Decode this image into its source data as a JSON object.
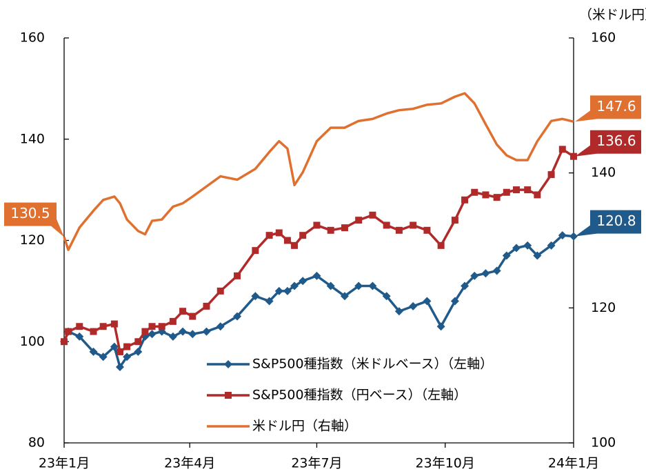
{
  "chart_data": {
    "type": "line",
    "y2_label": "（米ドル円）",
    "x": [
      0,
      3,
      11,
      21,
      28,
      36,
      40,
      45,
      53,
      58,
      63,
      70,
      78,
      85,
      92,
      102,
      112,
      124,
      137,
      147,
      154,
      160,
      165,
      171,
      181,
      191,
      201,
      211,
      221,
      231,
      240,
      250,
      260,
      270,
      280,
      287,
      294,
      302,
      310,
      317,
      324,
      332,
      339,
      349,
      357,
      365
    ],
    "xlim": [
      0,
      365
    ],
    "xticks": [
      {
        "value": 0,
        "label": "23年1月"
      },
      {
        "value": 90,
        "label": "23年4月"
      },
      {
        "value": 181,
        "label": "23年7月"
      },
      {
        "value": 273,
        "label": "23年10月"
      },
      {
        "value": 365,
        "label": "24年1月"
      }
    ],
    "ylim": [
      80,
      160
    ],
    "yticks": [
      80,
      100,
      120,
      140,
      160
    ],
    "y2lim": [
      100,
      160
    ],
    "y2ticks": [
      100,
      120,
      140,
      160
    ],
    "grid": false,
    "series": [
      {
        "name": "S&P500種指数（米ドルベース）（左軸）",
        "color": "#1f5a8a",
        "marker": "diamond",
        "values": [
          100,
          102,
          101,
          98,
          97,
          99,
          95,
          97,
          98,
          101,
          101.5,
          102,
          101,
          102,
          101.5,
          102,
          103,
          105,
          109,
          108,
          110,
          110,
          111,
          112,
          113,
          111,
          109,
          111,
          111,
          109,
          106,
          107,
          108,
          103,
          108,
          111,
          113,
          113.5,
          114,
          117,
          118.5,
          119,
          117,
          119,
          121,
          120.8
        ]
      },
      {
        "name": "S&P500種指数（円ベース）（左軸）",
        "color": "#b02a2a",
        "marker": "square",
        "values": [
          100,
          102,
          103,
          102,
          103,
          103.5,
          98,
          99,
          100,
          102,
          103,
          103,
          104,
          106,
          105,
          107,
          110,
          113,
          118,
          121,
          121.5,
          120,
          119,
          121,
          123,
          122,
          122.5,
          124,
          125,
          123,
          122,
          123,
          122,
          119,
          124,
          128,
          129.5,
          129,
          128.5,
          129.5,
          130,
          130,
          129,
          133,
          138,
          136.6
        ]
      },
      {
        "name": "米ドル円（右軸）",
        "color": "#e0702f",
        "marker": "none",
        "axis": "y2",
        "values": [
          130.5,
          128.6,
          131.9,
          134.4,
          136,
          136.5,
          135.5,
          133.1,
          131.4,
          130.9,
          132.9,
          133.1,
          135,
          135.5,
          136.5,
          138,
          139.5,
          139,
          140.6,
          143.1,
          144.7,
          143.6,
          138.2,
          140.1,
          144.7,
          146.7,
          146.7,
          147.7,
          148,
          148.8,
          149.3,
          149.5,
          150.1,
          150.3,
          151.3,
          151.8,
          150.3,
          147.2,
          144.2,
          142.6,
          141.9,
          141.9,
          144.7,
          147.7,
          148,
          147.6
        ]
      }
    ]
  }
}
